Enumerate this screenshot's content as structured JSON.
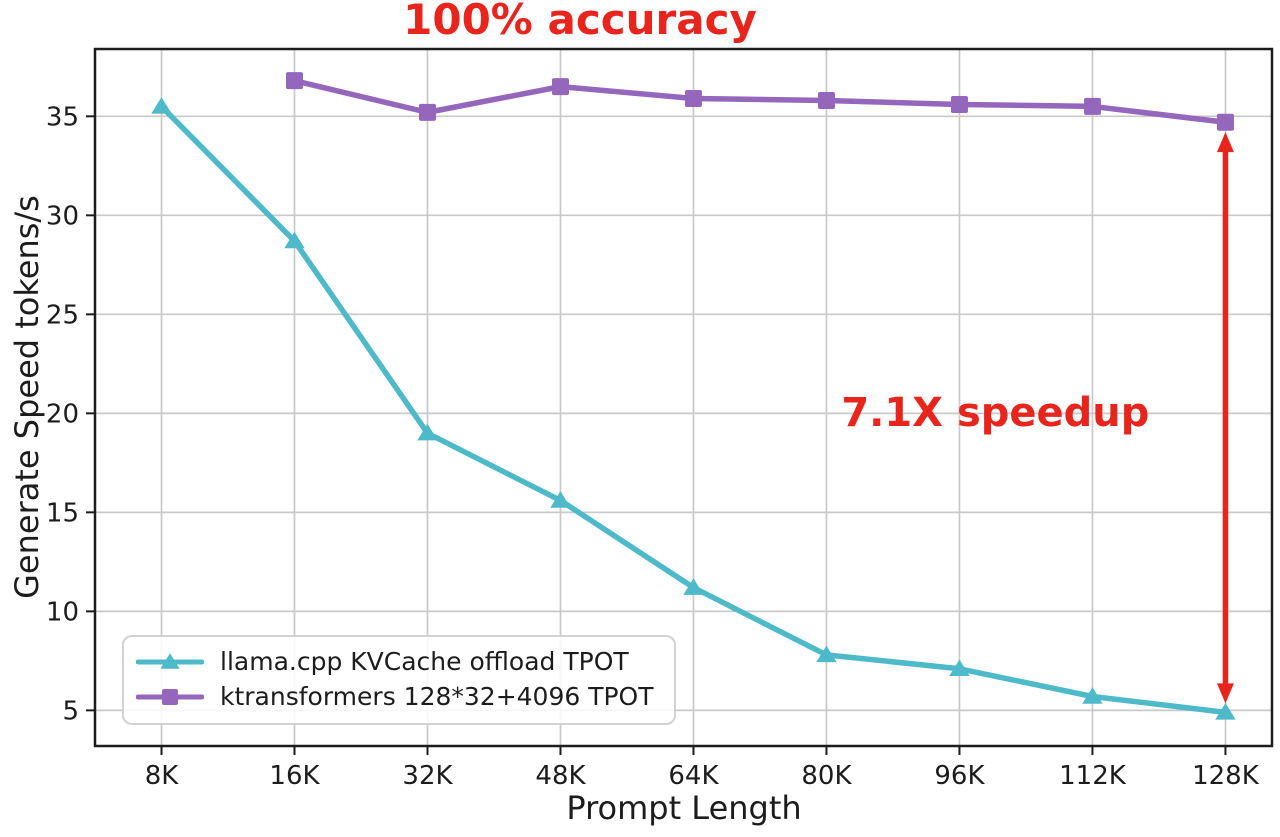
{
  "figure": {
    "background": "#ffffff",
    "frame_color": "#1c1c1c",
    "grid_color": "#c9c9c9",
    "tick_label_color": "#1c1c1c"
  },
  "chart_data": {
    "type": "line",
    "title": "100% accuracy",
    "title_color": "#e8251d",
    "xlabel": "Prompt Length",
    "ylabel": "Generate Speed tokens/s",
    "categories": [
      "8K",
      "16K",
      "32K",
      "48K",
      "64K",
      "80K",
      "96K",
      "112K",
      "128K"
    ],
    "y_ticks": [
      5,
      10,
      15,
      20,
      25,
      30,
      35
    ],
    "ylim": [
      3.2,
      38.4
    ],
    "xlim": [
      -0.5,
      8.35
    ],
    "grid": true,
    "legend_position": "lower left",
    "series": [
      {
        "name": "llama.cpp KVCache offload TPOT",
        "color": "#4db9c9",
        "marker": "triangle",
        "values": [
          35.5,
          28.7,
          19.0,
          15.6,
          11.2,
          7.8,
          7.1,
          5.7,
          4.9
        ]
      },
      {
        "name": "ktransformers 128*32+4096 TPOT",
        "color": "#9467bd",
        "marker": "square",
        "values": [
          null,
          36.8,
          35.2,
          36.5,
          35.9,
          35.8,
          35.6,
          35.5,
          34.7
        ]
      }
    ],
    "annotations": {
      "speedup_label": {
        "text": "7.1X speedup",
        "color": "#e8251d",
        "cx": 6.27,
        "cy": 20.0
      },
      "speedup_arrow": {
        "x": 8,
        "y_top": 34.2,
        "y_bottom": 5.35,
        "color": "#e8251d"
      }
    }
  }
}
